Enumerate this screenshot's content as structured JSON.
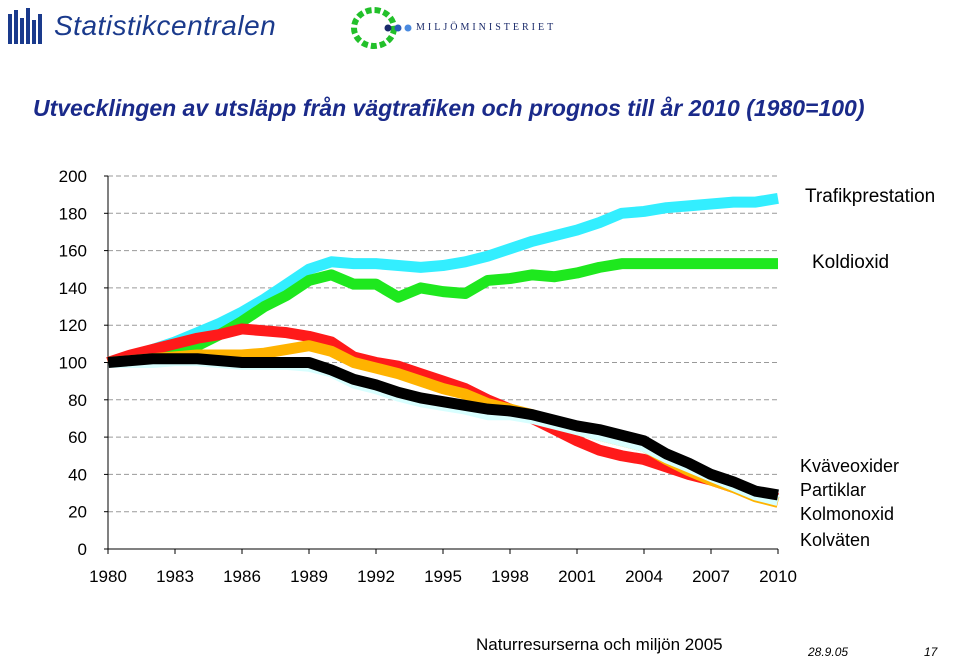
{
  "header": {
    "org_name": "Statistikcentralen",
    "ministry_name": "MILJÖMINISTERIET"
  },
  "footer": {
    "source": "Naturresurserna och miljön 2005",
    "date": "28.9.05",
    "page_number": "17"
  },
  "colors": {
    "title": "#1a2a8a",
    "trafik": "#33eeff",
    "koldioxid": "#1ee81e",
    "kvave": "#ff1a1a",
    "partiklar": "#ffb300",
    "kolmonoxid": "#d8ffff",
    "kolvaten": "#000000"
  },
  "chart_data": {
    "type": "line",
    "title": "Utvecklingen av utsläpp från vägtrafiken och prognos till år 2010 (1980=100)",
    "xlabel": "",
    "ylabel": "",
    "ylim": [
      0,
      200
    ],
    "xlim": [
      1980,
      2010
    ],
    "y_ticks": [
      0,
      20,
      40,
      60,
      80,
      100,
      120,
      140,
      160,
      180,
      200
    ],
    "x_ticks": [
      1980,
      1983,
      1986,
      1989,
      1992,
      1995,
      1998,
      2001,
      2004,
      2007,
      2010
    ],
    "grid": true,
    "x": [
      1980,
      1981,
      1982,
      1983,
      1984,
      1985,
      1986,
      1987,
      1988,
      1989,
      1990,
      1991,
      1992,
      1993,
      1994,
      1995,
      1996,
      1997,
      1998,
      1999,
      2000,
      2001,
      2002,
      2003,
      2004,
      2005,
      2006,
      2007,
      2008,
      2009,
      2010
    ],
    "series": [
      {
        "name": "Trafikprestation",
        "color": "#33eeff",
        "values": [
          100,
          103,
          107,
          111,
          116,
          121,
          127,
          134,
          142,
          150,
          154,
          153,
          153,
          152,
          151,
          152,
          154,
          157,
          161,
          165,
          168,
          171,
          175,
          180,
          181,
          183,
          184,
          185,
          186,
          186,
          188
        ]
      },
      {
        "name": "Koldioxid",
        "color": "#1ee81e",
        "values": [
          100,
          102,
          104,
          106,
          109,
          115,
          122,
          130,
          136,
          144,
          147,
          142,
          142,
          135,
          140,
          138,
          137,
          144,
          145,
          147,
          146,
          148,
          151,
          153,
          153,
          153,
          153,
          153,
          153,
          153,
          153
        ]
      },
      {
        "name": "Kväveoxider",
        "color": "#ff1a1a",
        "values": [
          100,
          104,
          107,
          110,
          113,
          115,
          118,
          117,
          116,
          114,
          111,
          103,
          100,
          98,
          94,
          90,
          86,
          80,
          75,
          70,
          64,
          58,
          53,
          50,
          48,
          44,
          40,
          37,
          33,
          29,
          27
        ]
      },
      {
        "name": "Partiklar",
        "color": "#ffb300",
        "values": [
          100,
          101,
          102,
          103,
          104,
          104,
          104,
          105,
          107,
          109,
          106,
          100,
          97,
          94,
          90,
          86,
          83,
          78,
          75,
          72,
          68,
          64,
          61,
          58,
          55,
          48,
          42,
          37,
          33,
          28,
          25
        ]
      },
      {
        "name": "Kolmonoxid",
        "color": "#d8ffff",
        "values": [
          100,
          100,
          100,
          101,
          101,
          100,
          99,
          99,
          99,
          98,
          95,
          89,
          86,
          82,
          79,
          77,
          75,
          72,
          72,
          70,
          67,
          64,
          61,
          58,
          55,
          49,
          44,
          39,
          34,
          29,
          26
        ]
      },
      {
        "name": "Kolväten",
        "color": "#000000",
        "values": [
          100,
          101,
          102,
          102,
          102,
          101,
          100,
          100,
          100,
          100,
          96,
          91,
          88,
          84,
          81,
          79,
          77,
          75,
          74,
          72,
          69,
          66,
          64,
          61,
          58,
          51,
          46,
          40,
          36,
          31,
          29
        ]
      }
    ],
    "legend": [
      {
        "label": "Trafikprestation",
        "placement": "right-top"
      },
      {
        "label": "Koldioxid",
        "placement": "right-upper"
      },
      {
        "label": "Kväveoxider",
        "placement": "right-bottom"
      },
      {
        "label": "Partiklar",
        "placement": "right-bottom"
      },
      {
        "label": "Kolmonoxid",
        "placement": "right-bottom"
      },
      {
        "label": "Kolväten",
        "placement": "right-bottom"
      }
    ]
  }
}
